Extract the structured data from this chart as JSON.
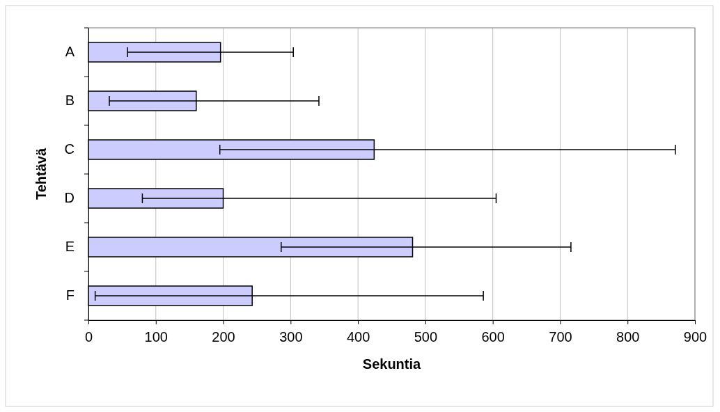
{
  "chart_data": {
    "type": "bar",
    "orientation": "horizontal",
    "xlabel": "Sekuntia",
    "ylabel": "Tehtävä",
    "categories": [
      "A",
      "B",
      "C",
      "D",
      "E",
      "F"
    ],
    "values": [
      196,
      160,
      424,
      200,
      481,
      243
    ],
    "errors": [
      [
        58,
        304
      ],
      [
        31,
        342
      ],
      [
        195,
        871
      ],
      [
        80,
        605
      ],
      [
        286,
        716
      ],
      [
        10,
        586
      ]
    ],
    "color": "#ccccff",
    "xlim": [
      0,
      900
    ],
    "xticks": [
      0,
      100,
      200,
      300,
      400,
      500,
      600,
      700,
      800,
      900
    ],
    "grid": "x"
  }
}
